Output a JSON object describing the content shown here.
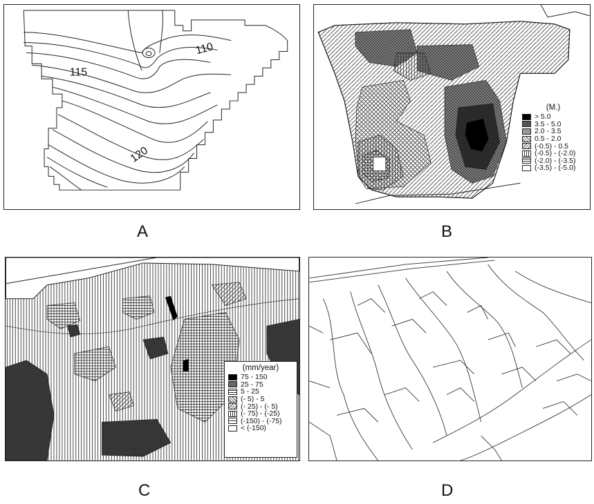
{
  "panels": [
    {
      "label": "A",
      "contour_labels": [
        "110",
        "115",
        "120"
      ]
    },
    {
      "label": "B",
      "legend": {
        "title": "(M.)",
        "entries": [
          {
            "text": "> 5.0",
            "pattern": "black"
          },
          {
            "text": "3.5 - 5.0",
            "pattern": "cross-dense"
          },
          {
            "text": "2.0 - 3.5",
            "pattern": "grid"
          },
          {
            "text": "0.5 - 2.0",
            "pattern": "diag-back"
          },
          {
            "text": "(-0.5) - 0.5",
            "pattern": "diag-fwd"
          },
          {
            "text": "(-0.5) - (-2.0)",
            "pattern": "vertical"
          },
          {
            "text": "(-2.0) - (-3.5)",
            "pattern": "horizontal"
          },
          {
            "text": "(-3.5) - (-5.0)",
            "pattern": "blank"
          }
        ]
      }
    },
    {
      "label": "C",
      "legend": {
        "title": "(mm/year)",
        "entries": [
          {
            "text": "75 -  150",
            "pattern": "black"
          },
          {
            "text": "25 -   75",
            "pattern": "cross-dense"
          },
          {
            "text": "5 -   25",
            "pattern": "horizontal"
          },
          {
            "text": "(-  5) -   5",
            "pattern": "diag-back"
          },
          {
            "text": "(- 25) - (- 5)",
            "pattern": "diag-fwd"
          },
          {
            "text": "(- 75) - (-25)",
            "pattern": "vertical"
          },
          {
            "text": "(-150) - (-75)",
            "pattern": "horizontal"
          },
          {
            "text": "< (-150)",
            "pattern": "blank"
          }
        ]
      }
    },
    {
      "label": "D"
    }
  ]
}
